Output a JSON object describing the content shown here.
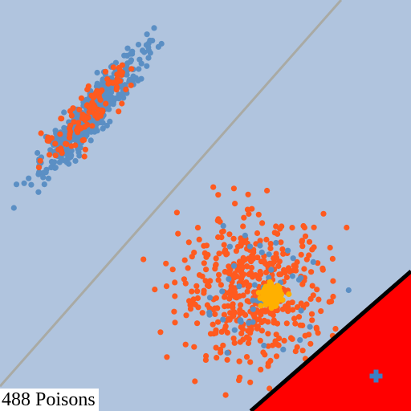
{
  "label": {
    "count": "488 Poisons"
  },
  "colors": {
    "background": "#b0c4de",
    "clean_points": "#5b8fc4",
    "poison_points": "#ff5a1f",
    "poison_core": "#ffb000",
    "diagonal_line": "#a9aaa4",
    "attack_region_fill": "#ff0000",
    "attack_region_edge": "#000000",
    "target_marker": "#3d7fc4"
  },
  "chart_data": {
    "type": "scatter",
    "xlim": [
      0,
      1
    ],
    "ylim": [
      0,
      1
    ],
    "grid": false,
    "clusters": [
      {
        "label": "clean-cluster",
        "color_key": "clean_points",
        "center": [
          0.22,
          0.72
        ],
        "spread_along": 0.09,
        "spread_across": 0.018,
        "angle_deg": 50,
        "count": 520
      },
      {
        "label": "poison-cluster-in-clean",
        "color_key": "poison_points",
        "center": [
          0.22,
          0.73
        ],
        "spread_along": 0.08,
        "spread_across": 0.02,
        "angle_deg": 50,
        "count": 110
      },
      {
        "label": "poison-cluster",
        "color_key": "poison_points",
        "center": [
          0.62,
          0.29
        ],
        "spread_along": 0.09,
        "spread_across": 0.09,
        "angle_deg": 0,
        "count": 488
      },
      {
        "label": "clean-in-poison",
        "color_key": "clean_points",
        "center": [
          0.63,
          0.3
        ],
        "spread_along": 0.08,
        "spread_across": 0.08,
        "angle_deg": 0,
        "count": 45
      },
      {
        "label": "poison-core",
        "color_key": "poison_core",
        "center": [
          0.66,
          0.28
        ],
        "spread_along": 0.012,
        "spread_across": 0.012,
        "angle_deg": 0,
        "count": 110
      }
    ],
    "reference_line": {
      "from": [
        0,
        0.06
      ],
      "to": [
        0.83,
        1.0
      ]
    },
    "attack_region": [
      [
        0.61,
        0
      ],
      [
        1.0,
        0
      ],
      [
        1.0,
        0.34
      ]
    ],
    "target_point": [
      0.915,
      0.085
    ]
  }
}
